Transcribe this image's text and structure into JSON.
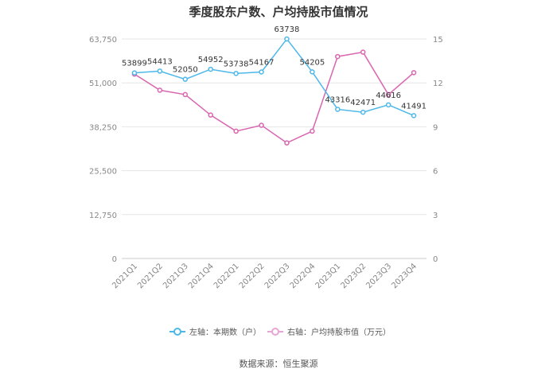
{
  "chart_data": {
    "type": "line",
    "title": "季度股东户数、户均持股市值情况",
    "categories": [
      "2021Q1",
      "2021Q2",
      "2021Q3",
      "2021Q4",
      "2022Q1",
      "2022Q2",
      "2022Q3",
      "2022Q4",
      "2023Q1",
      "2023Q2",
      "2023Q3",
      "2023Q4"
    ],
    "left_axis": {
      "ylim": [
        0,
        63750
      ],
      "ticks": [
        "0",
        "12,750",
        "25,500",
        "38,250",
        "51,000",
        "63,750"
      ],
      "tick_values": [
        0,
        12750,
        25500,
        38250,
        51000,
        63750
      ]
    },
    "right_axis": {
      "ylim": [
        0,
        15
      ],
      "ticks": [
        "0",
        "3",
        "6",
        "9",
        "12",
        "15"
      ],
      "tick_values": [
        0,
        3,
        6,
        9,
        12,
        15
      ]
    },
    "series": [
      {
        "name": "左轴：本期数（户）",
        "axis": "left",
        "color": "#4cb8ea",
        "values": [
          53899,
          54413,
          52050,
          54952,
          53738,
          54167,
          63738,
          54205,
          43316,
          42471,
          44616,
          41491
        ],
        "labels": [
          "53899",
          "54413",
          "52050",
          "54952",
          "53738",
          "54167",
          "63738",
          "54205",
          "43316",
          "42471",
          "44616",
          "41491"
        ]
      },
      {
        "name": "右轴：户均持股市值（万元）",
        "axis": "right",
        "color": "#d966b0",
        "values": [
          12.6,
          11.5,
          11.2,
          9.8,
          8.7,
          9.1,
          7.9,
          8.7,
          13.8,
          14.1,
          11.2,
          12.7
        ]
      }
    ],
    "grid": true,
    "legend_position": "bottom"
  },
  "source": "数据来源：恒生聚源"
}
